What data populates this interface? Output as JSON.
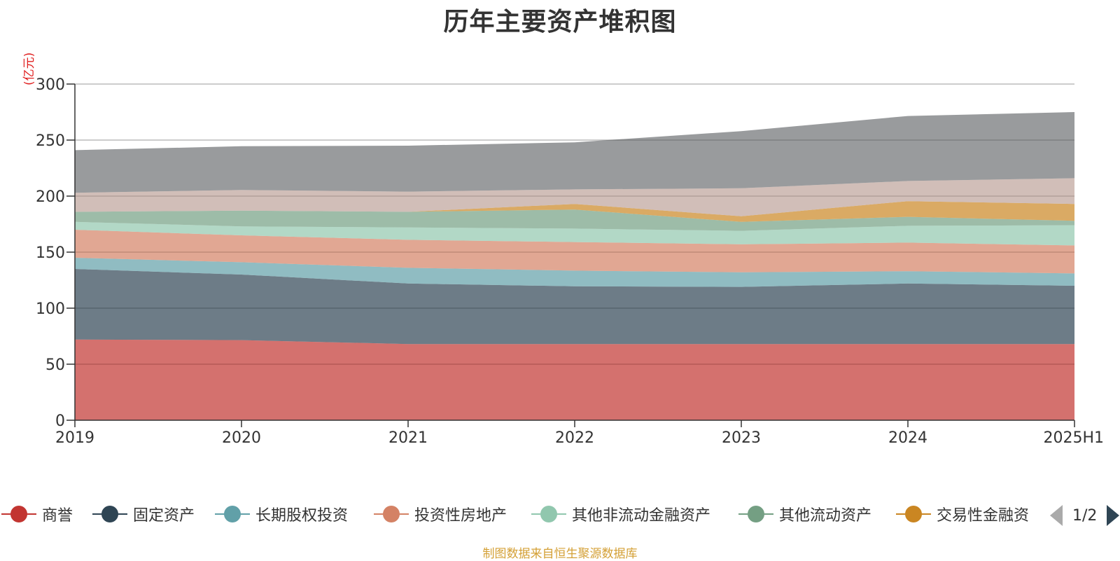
{
  "title": "历年主要资产堆积图",
  "unit_label": "(亿元)",
  "source_text": "制图数据来自恒生聚源数据库",
  "pager": {
    "text": "1/2"
  },
  "chart_data": {
    "type": "area",
    "stacked": true,
    "categories": [
      "2019",
      "2020",
      "2021",
      "2022",
      "2023",
      "2024",
      "2025H1"
    ],
    "ylim": [
      0,
      300
    ],
    "yticks": [
      0,
      50,
      100,
      150,
      200,
      250,
      300
    ],
    "grid": true,
    "legend_position": "bottom",
    "series": [
      {
        "name": "商誉",
        "color": "#c23531",
        "values": [
          72,
          71.5,
          68,
          68,
          68,
          68,
          68
        ]
      },
      {
        "name": "固定资产",
        "color": "#2f4554",
        "values": [
          63,
          58.5,
          54,
          51.5,
          51,
          54,
          52
        ]
      },
      {
        "name": "长期股权投资",
        "color": "#61a0a8",
        "values": [
          10,
          11,
          14,
          14,
          13,
          11,
          11
        ]
      },
      {
        "name": "投资性房地产",
        "color": "#d48265",
        "values": [
          25,
          24,
          25,
          25.5,
          25,
          25.5,
          25
        ]
      },
      {
        "name": "其他非流动金融资产",
        "color": "#91c7ae",
        "values": [
          7,
          8,
          11,
          12,
          12,
          15,
          18
        ]
      },
      {
        "name": "其他流动资产",
        "color": "#749f83",
        "values": [
          9,
          14,
          14,
          17,
          8,
          8,
          4
        ]
      },
      {
        "name": "交易性金融资",
        "color": "#ca8622",
        "values": [
          0,
          0,
          0,
          5,
          5,
          14,
          15
        ]
      },
      {
        "name": "",
        "color": "#bda29a",
        "values": [
          17,
          18.5,
          18,
          13,
          25,
          18,
          23
        ]
      },
      {
        "name": "",
        "color": "#6e7074",
        "values": [
          38,
          39,
          41,
          42,
          51,
          58,
          59
        ]
      }
    ]
  }
}
